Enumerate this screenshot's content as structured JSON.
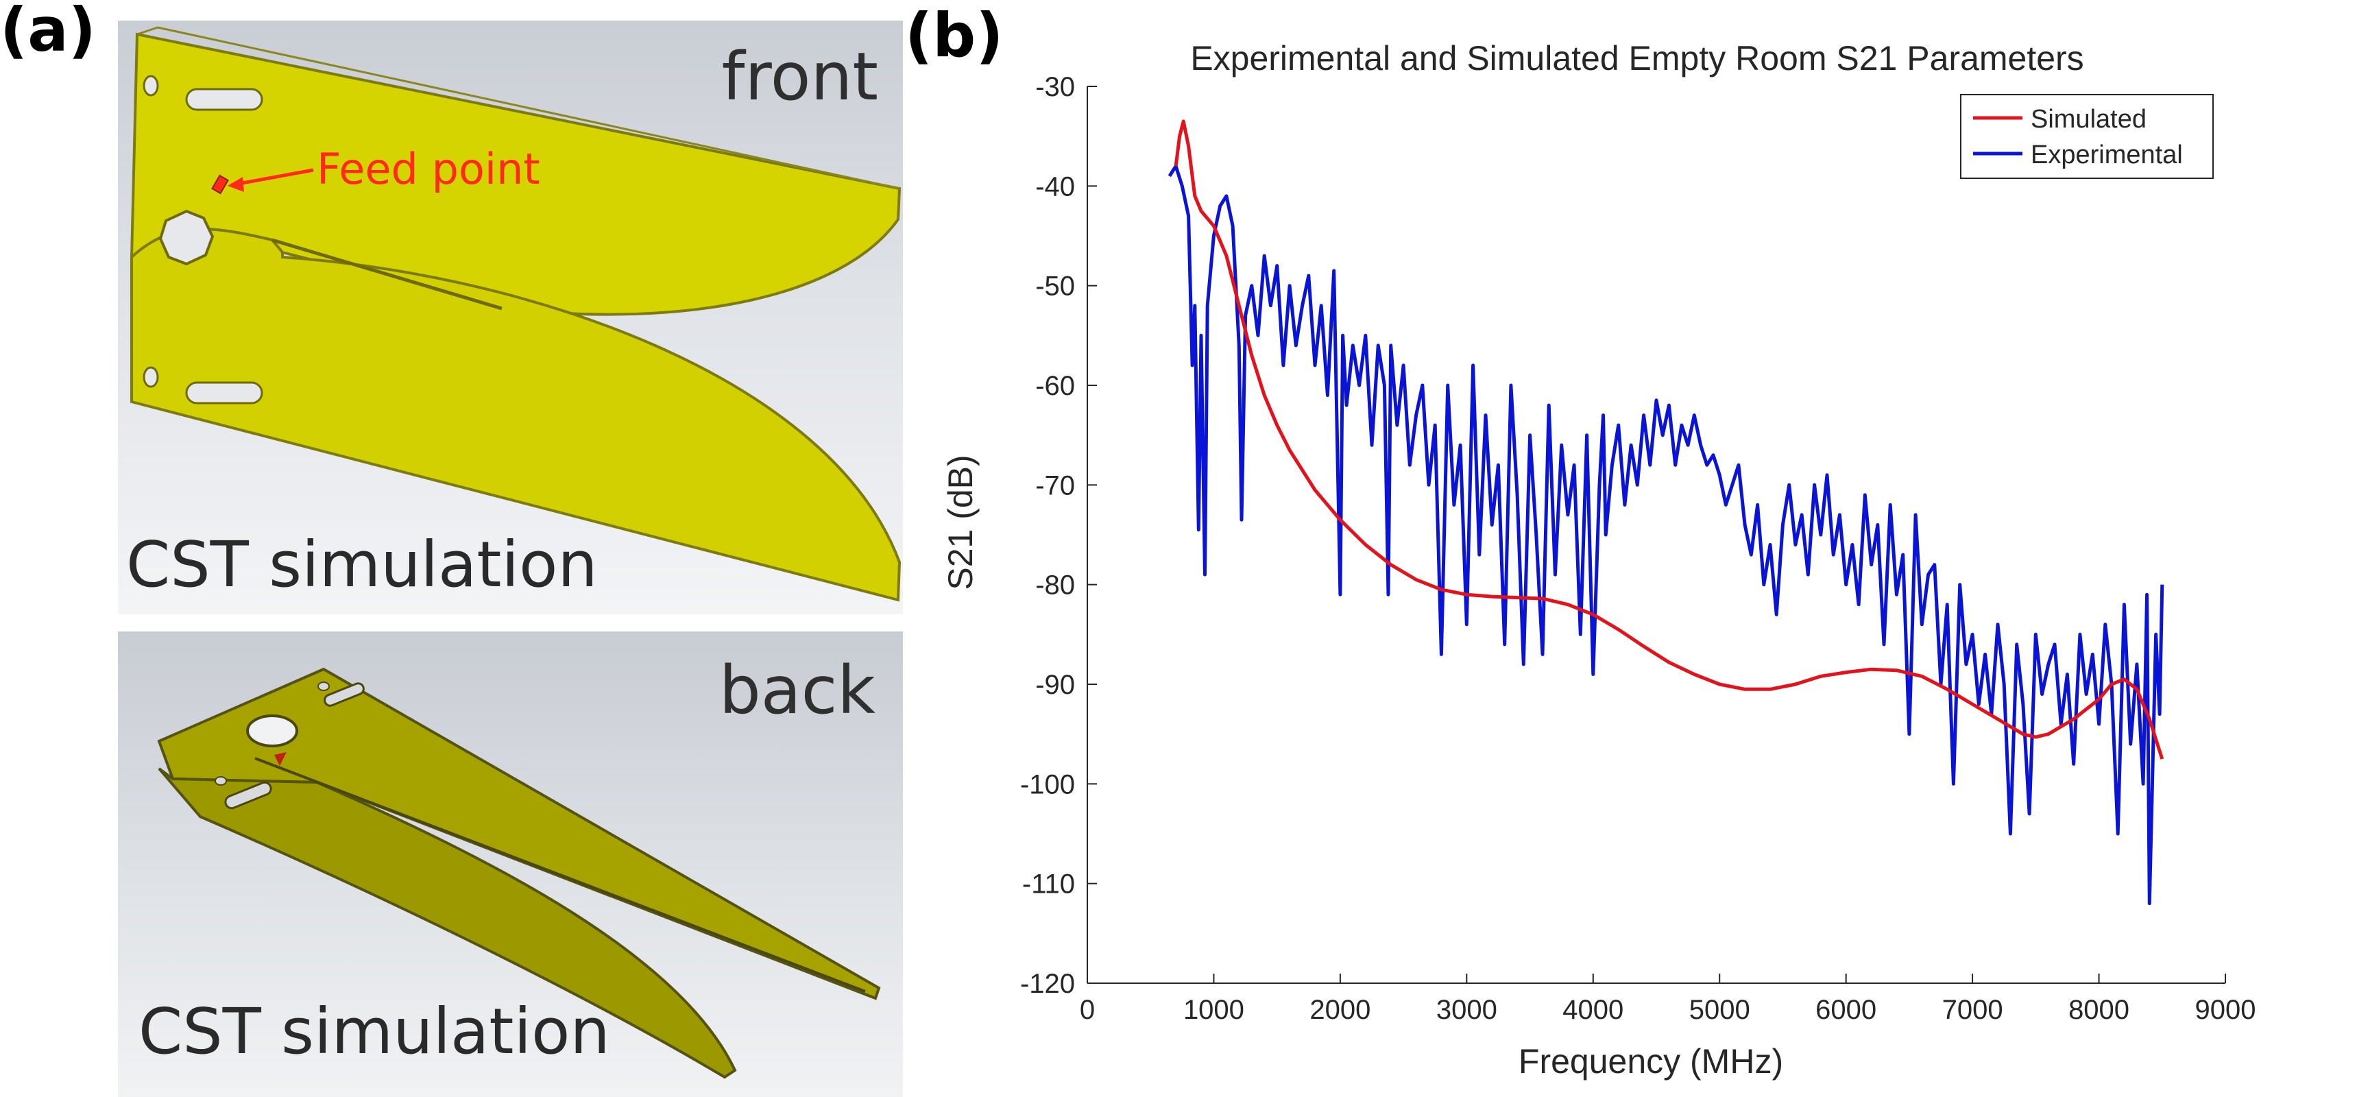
{
  "panels": {
    "a_label": "(a)",
    "b_label": "(b)"
  },
  "antenna": {
    "front_view_label": "front",
    "back_view_label": "back",
    "feed_label": "Feed point",
    "cst_label_front": "CST simulation",
    "cst_label_back": "CST simulation",
    "colors": {
      "plate_front": "#d6d400",
      "plate_back": "#a6a300",
      "feed_arrow": "#ff2a1a"
    }
  },
  "chart_data": {
    "type": "line",
    "title": "Experimental and Simulated Empty Room S21 Parameters",
    "xlabel": "Frequency (MHz)",
    "ylabel": "S21 (dB)",
    "xlim": [
      0,
      9000
    ],
    "ylim": [
      -120,
      -30
    ],
    "xticks": [
      0,
      1000,
      2000,
      3000,
      4000,
      5000,
      6000,
      7000,
      8000,
      9000
    ],
    "yticks": [
      -30,
      -40,
      -50,
      -60,
      -70,
      -80,
      -90,
      -100,
      -110,
      -120
    ],
    "grid": false,
    "legend_position": "top-right",
    "series": [
      {
        "name": "Simulated",
        "color": "#e3121b",
        "x": [
          700,
          730,
          760,
          800,
          850,
          900,
          1000,
          1100,
          1200,
          1300,
          1400,
          1500,
          1600,
          1800,
          2000,
          2200,
          2400,
          2600,
          2800,
          3000,
          3200,
          3400,
          3600,
          3800,
          4000,
          4200,
          4400,
          4600,
          4800,
          5000,
          5200,
          5400,
          5600,
          5800,
          6000,
          6200,
          6400,
          6600,
          6800,
          7000,
          7200,
          7400,
          7500,
          7600,
          7800,
          8000,
          8100,
          8200,
          8300,
          8400,
          8500
        ],
        "y": [
          -38,
          -35,
          -33.5,
          -36,
          -41,
          -42.5,
          -44,
          -47,
          -52,
          -57,
          -61,
          -64,
          -66.5,
          -70.5,
          -73.5,
          -76,
          -78,
          -79.5,
          -80.5,
          -81,
          -81.2,
          -81.3,
          -81.4,
          -82,
          -83,
          -84.5,
          -86.2,
          -87.8,
          -89,
          -90,
          -90.5,
          -90.5,
          -90,
          -89.2,
          -88.8,
          -88.5,
          -88.6,
          -89.2,
          -90.5,
          -92,
          -93.5,
          -95,
          -95.3,
          -95,
          -93.5,
          -91.5,
          -90,
          -89.5,
          -90.5,
          -93.5,
          -97.5
        ]
      },
      {
        "name": "Experimental",
        "color": "#0a14d6",
        "x": [
          650,
          700,
          750,
          800,
          830,
          850,
          880,
          900,
          930,
          950,
          1000,
          1050,
          1100,
          1150,
          1200,
          1220,
          1250,
          1300,
          1350,
          1400,
          1450,
          1500,
          1550,
          1600,
          1650,
          1700,
          1750,
          1800,
          1850,
          1900,
          1950,
          2000,
          2020,
          2050,
          2100,
          2150,
          2200,
          2250,
          2300,
          2350,
          2380,
          2400,
          2450,
          2500,
          2550,
          2600,
          2650,
          2700,
          2750,
          2800,
          2850,
          2900,
          2950,
          3000,
          3050,
          3100,
          3150,
          3200,
          3250,
          3300,
          3350,
          3400,
          3450,
          3500,
          3550,
          3600,
          3650,
          3700,
          3750,
          3800,
          3850,
          3900,
          3950,
          4000,
          4050,
          4080,
          4100,
          4150,
          4200,
          4250,
          4300,
          4350,
          4400,
          4450,
          4500,
          4550,
          4600,
          4650,
          4700,
          4750,
          4800,
          4850,
          4900,
          4950,
          5000,
          5050,
          5100,
          5150,
          5200,
          5250,
          5300,
          5350,
          5400,
          5450,
          5500,
          5550,
          5600,
          5650,
          5700,
          5750,
          5800,
          5850,
          5900,
          5950,
          6000,
          6050,
          6100,
          6150,
          6200,
          6250,
          6300,
          6350,
          6400,
          6450,
          6500,
          6550,
          6600,
          6650,
          6700,
          6750,
          6800,
          6850,
          6900,
          6950,
          7000,
          7050,
          7100,
          7150,
          7200,
          7250,
          7300,
          7350,
          7400,
          7450,
          7500,
          7550,
          7600,
          7650,
          7700,
          7750,
          7800,
          7850,
          7900,
          7950,
          8000,
          8050,
          8100,
          8150,
          8200,
          8250,
          8300,
          8350,
          8380,
          8400,
          8450,
          8480,
          8500
        ],
        "y": [
          -39,
          -38,
          -40,
          -43,
          -58,
          -52,
          -74.5,
          -55,
          -79,
          -52,
          -45,
          -42,
          -41,
          -44,
          -56,
          -73.5,
          -53,
          -50,
          -55,
          -47,
          -52,
          -48,
          -58,
          -50,
          -56,
          -52,
          -49,
          -58,
          -52,
          -61,
          -48.5,
          -81,
          -55,
          -62,
          -56,
          -60,
          -55,
          -66,
          -56,
          -60,
          -81,
          -56,
          -64,
          -58,
          -68,
          -63,
          -60,
          -70,
          -64,
          -87,
          -60,
          -72,
          -66,
          -84,
          -58,
          -77,
          -63,
          -74,
          -68,
          -86,
          -60,
          -71,
          -88,
          -65,
          -75,
          -87,
          -62,
          -79,
          -66,
          -73,
          -68,
          -85,
          -65,
          -89,
          -70,
          -63,
          -75,
          -68,
          -64,
          -72,
          -66,
          -70,
          -63,
          -68,
          -61.5,
          -65,
          -62,
          -68,
          -64,
          -66,
          -63,
          -66,
          -68,
          -67,
          -69,
          -72,
          -70,
          -68,
          -74,
          -77,
          -72,
          -80,
          -76,
          -83,
          -74,
          -70,
          -76,
          -73,
          -79,
          -70,
          -75,
          -69,
          -77,
          -73,
          -80,
          -76,
          -82,
          -71,
          -78,
          -74,
          -86,
          -72,
          -81,
          -77,
          -95,
          -73,
          -84,
          -79,
          -78,
          -90,
          -82,
          -100,
          -80,
          -88,
          -85,
          -92,
          -87,
          -93,
          -84,
          -90,
          -105,
          -86,
          -92,
          -103,
          -85,
          -91,
          -88,
          -86,
          -94,
          -89,
          -98,
          -85,
          -91,
          -87,
          -94,
          -84,
          -90,
          -105,
          -82,
          -96,
          -88,
          -100,
          -81,
          -112,
          -85,
          -93,
          -80
        ]
      }
    ]
  }
}
